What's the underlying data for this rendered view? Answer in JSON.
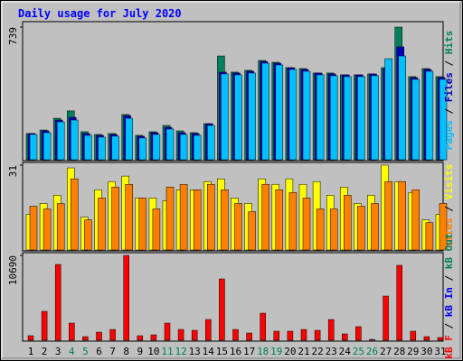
{
  "title": "Daily usage for July 2020",
  "legend_separator": " / ",
  "chart_data": [
    {
      "type": "bar",
      "ylim": [
        0,
        739
      ],
      "yticks": [
        739
      ],
      "series": [
        {
          "name": "Hits",
          "color": "#00805c",
          "values": [
            146,
            166,
            231,
            272,
            156,
            141,
            146,
            252,
            136,
            156,
            191,
            161,
            151,
            201,
            578,
            488,
            498,
            553,
            543,
            513,
            508,
            483,
            483,
            473,
            473,
            478,
            513,
            739,
            463,
            508,
            463
          ]
        },
        {
          "name": "Files",
          "color": "#0000c0",
          "values": [
            146,
            161,
            221,
            236,
            146,
            136,
            141,
            246,
            131,
            151,
            181,
            151,
            146,
            201,
            488,
            483,
            493,
            548,
            538,
            513,
            503,
            483,
            478,
            473,
            473,
            478,
            508,
            629,
            458,
            503,
            458
          ]
        },
        {
          "name": "Pages",
          "color": "#00c0ff",
          "values": [
            141,
            151,
            211,
            221,
            136,
            126,
            131,
            231,
            121,
            141,
            171,
            141,
            136,
            191,
            478,
            473,
            483,
            538,
            528,
            503,
            493,
            473,
            468,
            463,
            463,
            468,
            563,
            578,
            448,
            493,
            448
          ]
        }
      ]
    },
    {
      "type": "bar",
      "ylim": [
        0,
        31
      ],
      "yticks": [
        31
      ],
      "series": [
        {
          "name": "Visits",
          "color": "#ffff00",
          "values": [
            13,
            17,
            20,
            30,
            12,
            22,
            25,
            27,
            19,
            19,
            18,
            22,
            22,
            25,
            26,
            19,
            17,
            26,
            24,
            26,
            24,
            25,
            20,
            23,
            17,
            20,
            31,
            25,
            21,
            11,
            13
          ]
        },
        {
          "name": "Sites",
          "color": "#ff8000",
          "values": [
            16,
            15,
            17,
            26,
            11,
            19,
            23,
            24,
            19,
            15,
            23,
            24,
            22,
            24,
            22,
            17,
            14,
            24,
            22,
            21,
            19,
            15,
            15,
            20,
            16,
            17,
            25,
            25,
            22,
            10,
            17
          ]
        }
      ]
    },
    {
      "type": "bar",
      "ylim": [
        0,
        10690
      ],
      "yticks": [
        10690
      ],
      "categories": [
        "1",
        "2",
        "3",
        "4",
        "5",
        "6",
        "7",
        "8",
        "9",
        "10",
        "11",
        "12",
        "13",
        "14",
        "15",
        "16",
        "17",
        "18",
        "19",
        "20",
        "21",
        "22",
        "23",
        "24",
        "25",
        "26",
        "27",
        "28",
        "29",
        "30",
        "31"
      ],
      "category_colors": [
        "#000000",
        "#000000",
        "#000000",
        "#00805c",
        "#00805c",
        "#000000",
        "#000000",
        "#000000",
        "#000000",
        "#000000",
        "#00805c",
        "#00805c",
        "#000000",
        "#000000",
        "#000000",
        "#000000",
        "#000000",
        "#00805c",
        "#00805c",
        "#000000",
        "#000000",
        "#000000",
        "#000000",
        "#000000",
        "#00805c",
        "#00805c",
        "#000000",
        "#000000",
        "#000000",
        "#000000",
        "#000000"
      ],
      "series": [
        {
          "name": "kB F",
          "color": "#ff0000",
          "values": [
            570,
            3640,
            9550,
            2160,
            450,
            1020,
            1360,
            10690,
            570,
            680,
            2160,
            1360,
            1250,
            2610,
            7730,
            1360,
            910,
            3410,
            1140,
            1140,
            1360,
            1250,
            2610,
            800,
            1710,
            110,
            5570,
            9440,
            1140,
            450,
            340
          ]
        }
      ],
      "legend_extra": [
        {
          "name": "kB In",
          "color": "#0000ff"
        },
        {
          "name": "kB Out",
          "color": "#00805c"
        }
      ]
    }
  ]
}
